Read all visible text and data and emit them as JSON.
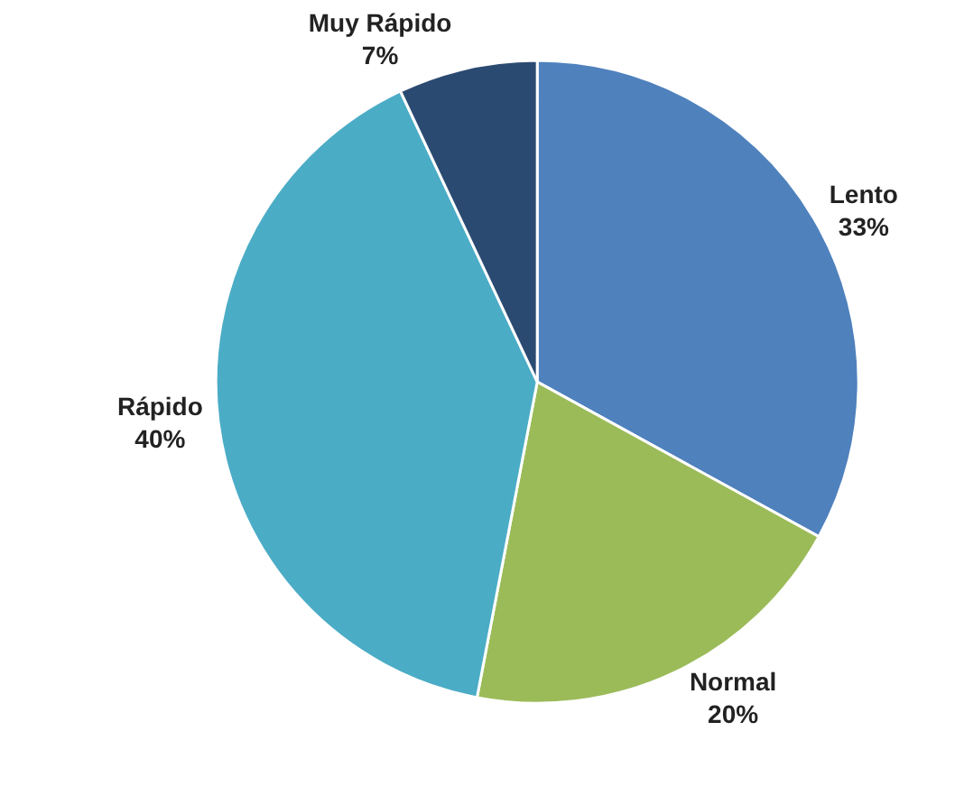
{
  "chart_data": {
    "type": "pie",
    "categories": [
      "Lento",
      "Normal",
      "Rápido",
      "Muy Rápido"
    ],
    "values": [
      33,
      20,
      40,
      7
    ],
    "value_labels": [
      "33%",
      "20%",
      "40%",
      "7%"
    ],
    "colors": [
      "#4f81bd",
      "#9bbb59",
      "#4bacc6",
      "#2b4a72"
    ],
    "legend": false
  }
}
